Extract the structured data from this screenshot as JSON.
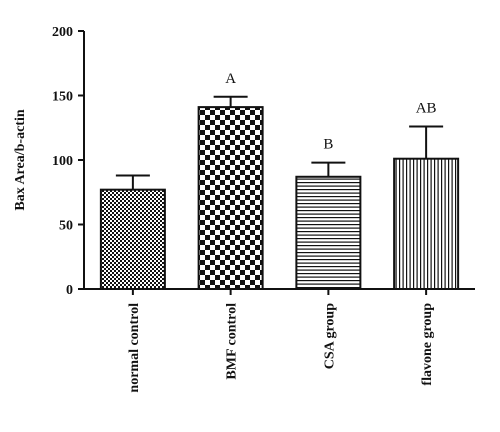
{
  "chart_data": {
    "type": "bar",
    "categories": [
      "normal control",
      "BMF control",
      "CSA group",
      "flavone group"
    ],
    "values": [
      77,
      141,
      87,
      101
    ],
    "error_upper": [
      88,
      149,
      98,
      126
    ],
    "annotations": [
      "",
      "A",
      "B",
      "AB"
    ],
    "patterns": [
      "fine-checker",
      "coarse-checker",
      "horizontal-lines",
      "vertical-lines"
    ],
    "xlabel": "",
    "ylabel": "Bax Area/b-actin",
    "ylim": [
      0,
      200
    ],
    "yticks": [
      0,
      50,
      100,
      150,
      200
    ],
    "grid": false,
    "legend": "none"
  }
}
